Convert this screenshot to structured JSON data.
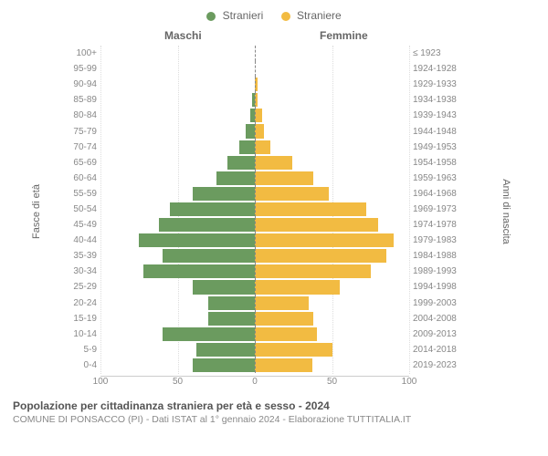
{
  "chart": {
    "type": "population-pyramid",
    "legend": [
      {
        "label": "Stranieri",
        "color": "#6b9b5f"
      },
      {
        "label": "Straniere",
        "color": "#f2bb42"
      }
    ],
    "col_headers": {
      "left": "Maschi",
      "right": "Femmine"
    },
    "y_axis_left": "Fasce di età",
    "y_axis_right": "Anni di nascita",
    "x_max": 100,
    "x_ticks": [
      100,
      50,
      0,
      50,
      100
    ],
    "male_color": "#6b9b5f",
    "female_color": "#f2bb42",
    "background": "#ffffff",
    "grid_color": "#dddddd",
    "label_fontsize": 10,
    "header_fontsize": 12,
    "rows": [
      {
        "age": "100+",
        "year": "≤ 1923",
        "m": 0,
        "f": 0
      },
      {
        "age": "95-99",
        "year": "1924-1928",
        "m": 0,
        "f": 0
      },
      {
        "age": "90-94",
        "year": "1929-1933",
        "m": 0,
        "f": 2
      },
      {
        "age": "85-89",
        "year": "1934-1938",
        "m": 2,
        "f": 2
      },
      {
        "age": "80-84",
        "year": "1939-1943",
        "m": 3,
        "f": 5
      },
      {
        "age": "75-79",
        "year": "1944-1948",
        "m": 6,
        "f": 6
      },
      {
        "age": "70-74",
        "year": "1949-1953",
        "m": 10,
        "f": 10
      },
      {
        "age": "65-69",
        "year": "1954-1958",
        "m": 18,
        "f": 24
      },
      {
        "age": "60-64",
        "year": "1959-1963",
        "m": 25,
        "f": 38
      },
      {
        "age": "55-59",
        "year": "1964-1968",
        "m": 40,
        "f": 48
      },
      {
        "age": "50-54",
        "year": "1969-1973",
        "m": 55,
        "f": 72
      },
      {
        "age": "45-49",
        "year": "1974-1978",
        "m": 62,
        "f": 80
      },
      {
        "age": "40-44",
        "year": "1979-1983",
        "m": 75,
        "f": 90
      },
      {
        "age": "35-39",
        "year": "1984-1988",
        "m": 60,
        "f": 85
      },
      {
        "age": "30-34",
        "year": "1989-1993",
        "m": 72,
        "f": 75
      },
      {
        "age": "25-29",
        "year": "1994-1998",
        "m": 40,
        "f": 55
      },
      {
        "age": "20-24",
        "year": "1999-2003",
        "m": 30,
        "f": 35
      },
      {
        "age": "15-19",
        "year": "2004-2008",
        "m": 30,
        "f": 38
      },
      {
        "age": "10-14",
        "year": "2009-2013",
        "m": 60,
        "f": 40
      },
      {
        "age": "5-9",
        "year": "2014-2018",
        "m": 38,
        "f": 50
      },
      {
        "age": "0-4",
        "year": "2019-2023",
        "m": 40,
        "f": 37
      }
    ]
  },
  "footer": {
    "title": "Popolazione per cittadinanza straniera per età e sesso - 2024",
    "subtitle": "COMUNE DI PONSACCO (PI) - Dati ISTAT al 1° gennaio 2024 - Elaborazione TUTTITALIA.IT"
  }
}
